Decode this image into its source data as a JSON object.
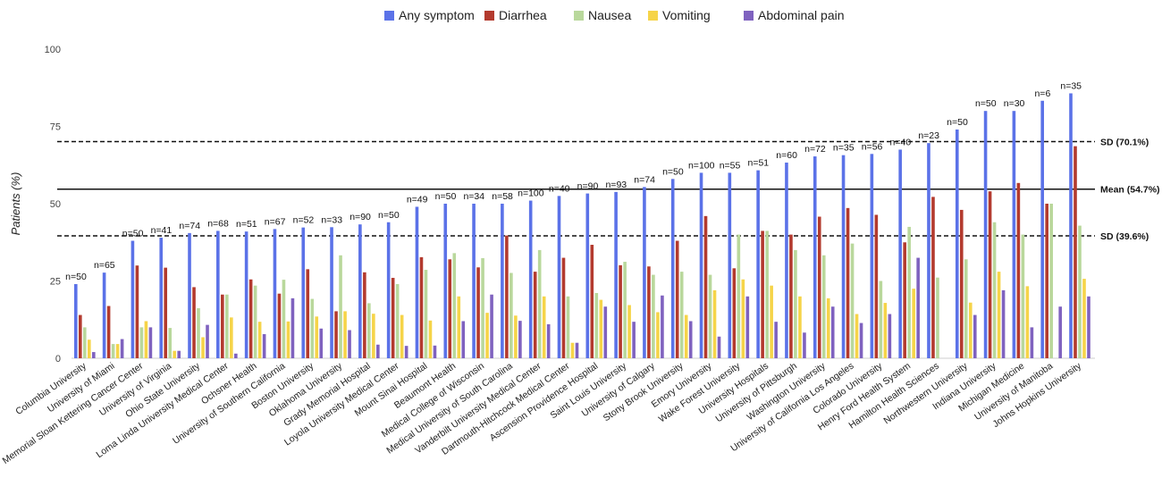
{
  "chart_data": {
    "type": "bar",
    "title": "",
    "xlabel": "",
    "ylabel": "Patients (%)",
    "ylim": [
      0,
      100
    ],
    "yticks": [
      0,
      25,
      50,
      75,
      100
    ],
    "grid": false,
    "legend_position": "top",
    "categories": [
      "Columbia University",
      "University of Miami",
      "Memorial Sloan Kettering Cancer Center",
      "University of Virginia",
      "Ohio State University",
      "Loma Linda University Medical Center",
      "Ochsner Health",
      "University of Southern California",
      "Boston University",
      "Oklahoma University",
      "Grady Memorial Hospital",
      "Loyola University Medical Center",
      "Mount Sinai Hospital",
      "Beaumont Health",
      "Medical College of Wisconsin",
      "Medical University of South Carolina",
      "Vanderbilt University Medical Center",
      "Dartmouth-Hitchcock Medical Center",
      "Ascension Providence Hospital",
      "Saint Louis University",
      "University of Calgary",
      "Stony Brook University",
      "Emory University",
      "Wake Forest University",
      "University Hospitals",
      "University of Pittsburgh",
      "Washington University",
      "University of California Los Angeles",
      "Colorado University",
      "Henry Ford Health System",
      "Hamilton Health Sciences",
      "Northwestern University",
      "Indiana University",
      "Michigan Medicine",
      "University of Manitoba",
      "Johns Hopkins University"
    ],
    "n_labels": [
      "n=50",
      "n=65",
      "n=50",
      "n=41",
      "n=74",
      "n=68",
      "n=51",
      "n=67",
      "n=52",
      "n=33",
      "n=90",
      "n=50",
      "n=49",
      "n=50",
      "n=34",
      "n=58",
      "n=100",
      "n=40",
      "n=90",
      "n=93",
      "n=74",
      "n=50",
      "n=100",
      "n=55",
      "n=51",
      "n=60",
      "n=72",
      "n=35",
      "n=56",
      "n=40",
      "n=23",
      "n=50",
      "n=50",
      "n=30",
      "n=6",
      "n=35"
    ],
    "series": [
      {
        "name": "Any symptom",
        "color": "#5b72e8",
        "values": [
          24,
          27.7,
          38,
          39,
          40.5,
          41.2,
          41,
          41.8,
          42.3,
          42.4,
          43.3,
          44,
          49,
          50,
          50,
          50,
          51,
          52.5,
          53.3,
          53.8,
          55.4,
          58,
          60,
          60,
          60.8,
          63.3,
          65.3,
          65.7,
          66.1,
          67.5,
          69.6,
          74,
          80,
          80,
          83.3,
          85.7
        ]
      },
      {
        "name": "Diarrhea",
        "color": "#b33a2e",
        "values": [
          14,
          16.9,
          30,
          29.3,
          23,
          20.6,
          25.5,
          20.9,
          28.8,
          15.2,
          27.8,
          26,
          32.7,
          32,
          29.4,
          39.7,
          28,
          32.5,
          36.7,
          30.1,
          29.7,
          38,
          46,
          29.1,
          41.2,
          40,
          45.8,
          48.6,
          46.4,
          37.5,
          52.2,
          48,
          54,
          56.7,
          50,
          68.6
        ]
      },
      {
        "name": "Nausea",
        "color": "#b9d89c",
        "values": [
          10,
          4.6,
          10,
          9.8,
          16.2,
          20.6,
          23.5,
          25.4,
          19.2,
          33.3,
          17.8,
          24,
          28.6,
          34,
          32.4,
          27.6,
          35,
          20,
          21.1,
          31.2,
          27,
          28,
          27,
          40,
          41.2,
          35,
          33.3,
          37.1,
          25,
          42.5,
          26.1,
          32,
          44,
          40,
          50,
          42.9
        ]
      },
      {
        "name": "Vomiting",
        "color": "#f6d449",
        "values": [
          6,
          4.6,
          12,
          2.4,
          6.8,
          13.2,
          11.8,
          11.9,
          13.5,
          15.2,
          14.4,
          14,
          12.2,
          20,
          14.7,
          13.8,
          20,
          5,
          18.9,
          17.2,
          14.9,
          14,
          22,
          25.5,
          23.5,
          20,
          19.4,
          14.3,
          17.9,
          22.5,
          0,
          18,
          28,
          23.3,
          0,
          25.7
        ]
      },
      {
        "name": "Abdominal pain",
        "color": "#7f62bf",
        "values": [
          2,
          6.2,
          10,
          2.4,
          10.8,
          1.5,
          7.8,
          19.4,
          9.6,
          9.1,
          4.4,
          4,
          4.1,
          12,
          20.6,
          12.1,
          11,
          5,
          16.7,
          11.8,
          20.3,
          12,
          7,
          20,
          11.8,
          8.3,
          16.7,
          11.4,
          14.3,
          32.5,
          0,
          14,
          22,
          10,
          16.7,
          20
        ]
      }
    ],
    "reference_lines": [
      {
        "label": "SD (70.1%)",
        "value": 70.1,
        "style": "dashed"
      },
      {
        "label": "Mean (54.7%)",
        "value": 54.7,
        "style": "solid"
      },
      {
        "label": "SD (39.6%)",
        "value": 39.6,
        "style": "dashed"
      }
    ]
  }
}
